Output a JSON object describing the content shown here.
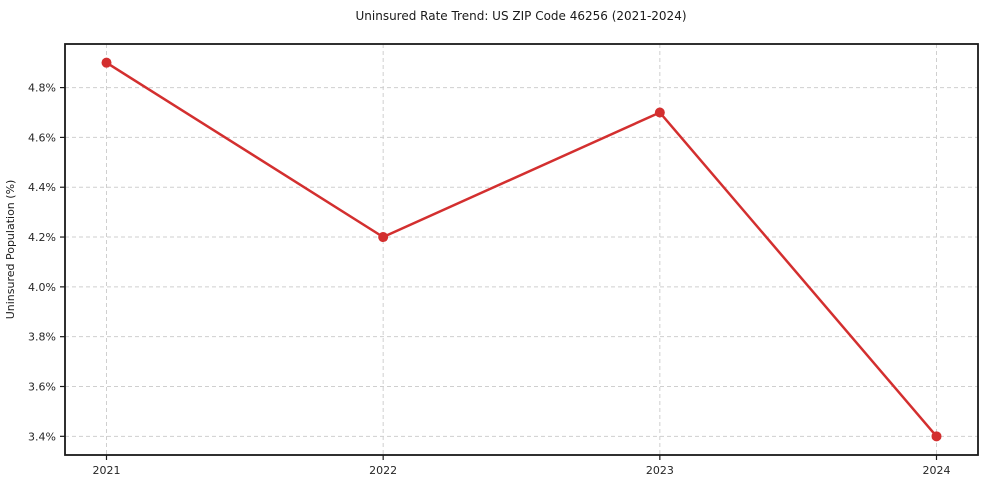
{
  "chart_data": {
    "type": "line",
    "title": "Uninsured Rate Trend: US ZIP Code 46256 (2021-2024)",
    "xlabel": "",
    "ylabel": "Uninsured Population (%)",
    "x": [
      2021,
      2022,
      2023,
      2024
    ],
    "values": [
      4.9,
      4.2,
      4.7,
      3.4
    ],
    "xticks": [
      2021,
      2022,
      2023,
      2024
    ],
    "xtick_labels": [
      "2021",
      "2022",
      "2023",
      "2024"
    ],
    "yticks": [
      3.4,
      3.6,
      3.8,
      4.0,
      4.2,
      4.4,
      4.6,
      4.8
    ],
    "ytick_labels": [
      "3.4%",
      "3.6%",
      "3.8%",
      "4.0%",
      "4.2%",
      "4.4%",
      "4.6%",
      "4.8%"
    ],
    "xlim": [
      2020.85,
      2024.15
    ],
    "ylim": [
      3.325,
      4.975
    ],
    "grid": true,
    "legend": false,
    "line_color": "#d32f2f",
    "marker": "circle",
    "marker_color": "#d32f2f",
    "grid_color": "#cfcfcf",
    "axis_border_color": "#1a1a1a",
    "background_color": "#ffffff"
  }
}
